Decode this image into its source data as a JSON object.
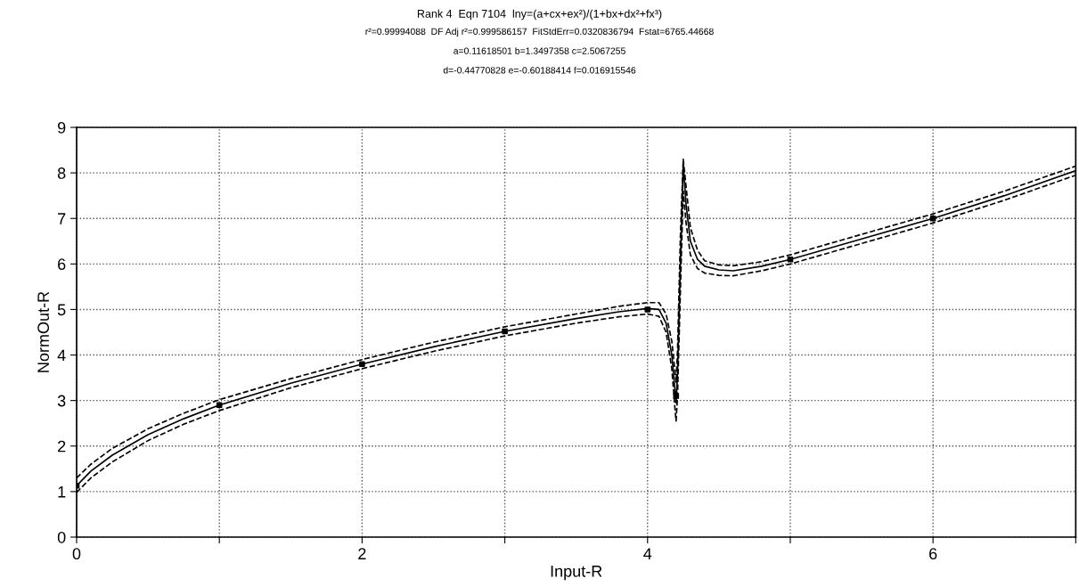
{
  "chart_data": {
    "type": "line",
    "title": "Rank 4  Eqn 7104  lny=(a+cx+ex²)/(1+bx+dx²+fx³)",
    "subtitle": "r²=0.99994088  DF Adj r²=0.999586157  FitStdErr=0.0320836794  Fstat=6765.44668",
    "annotations": [
      "a=0.11618501 b=1.3497358 c=2.5067255",
      "d=-0.44770828 e=-0.60188414 f=0.016915546"
    ],
    "xlabel": "Input-R",
    "ylabel": "NormOut-R",
    "series": [
      {
        "color": "#000000",
        "line_style": "solid",
        "x": [
          0,
          0.1,
          0.25,
          0.5,
          0.75,
          1,
          1.5,
          2,
          2.5,
          3,
          3.5,
          3.8,
          4.0,
          4.08,
          4.13,
          4.17,
          4.19,
          4.2,
          4.21,
          4.23,
          4.25,
          4.27,
          4.3,
          4.35,
          4.4,
          4.5,
          4.6,
          4.8,
          5,
          5.5,
          6,
          6.5,
          7
        ],
        "values": [
          1.13,
          1.45,
          1.8,
          2.25,
          2.6,
          2.9,
          3.38,
          3.8,
          4.18,
          4.52,
          4.8,
          4.95,
          5.02,
          5.0,
          4.7,
          4.0,
          3.3,
          2.95,
          3.6,
          6.0,
          8.2,
          7.3,
          6.5,
          6.1,
          5.95,
          5.87,
          5.85,
          5.95,
          6.1,
          6.55,
          7.0,
          7.5,
          8.05
        ]
      },
      {
        "color": "#000000",
        "line_style": "dashed",
        "x": [
          0,
          0.1,
          0.25,
          0.5,
          0.75,
          1,
          1.5,
          2,
          2.5,
          3,
          3.5,
          3.8,
          4.0,
          4.08,
          4.13,
          4.17,
          4.19,
          4.2,
          4.21,
          4.23,
          4.25,
          4.27,
          4.3,
          4.35,
          4.4,
          4.5,
          4.6,
          4.8,
          5,
          5.5,
          6,
          6.5,
          7
        ],
        "values": [
          1.3,
          1.6,
          1.95,
          2.38,
          2.72,
          3.02,
          3.48,
          3.9,
          4.28,
          4.62,
          4.9,
          5.07,
          5.15,
          5.15,
          4.9,
          4.3,
          3.7,
          3.4,
          4.1,
          6.6,
          8.3,
          7.7,
          6.8,
          6.3,
          6.07,
          5.98,
          5.96,
          6.05,
          6.2,
          6.65,
          7.1,
          7.6,
          8.15
        ]
      },
      {
        "color": "#000000",
        "line_style": "dashed",
        "x": [
          0,
          0.1,
          0.25,
          0.5,
          0.75,
          1,
          1.5,
          2,
          2.5,
          3,
          3.5,
          3.8,
          4.0,
          4.08,
          4.13,
          4.17,
          4.19,
          4.2,
          4.21,
          4.23,
          4.25,
          4.27,
          4.3,
          4.35,
          4.4,
          4.5,
          4.6,
          4.8,
          5,
          5.5,
          6,
          6.5,
          7
        ],
        "values": [
          0.98,
          1.3,
          1.65,
          2.12,
          2.48,
          2.78,
          3.28,
          3.7,
          4.08,
          4.42,
          4.7,
          4.84,
          4.9,
          4.85,
          4.5,
          3.7,
          2.9,
          2.55,
          3.1,
          5.4,
          7.6,
          6.9,
          6.2,
          5.9,
          5.8,
          5.75,
          5.74,
          5.85,
          6.0,
          6.45,
          6.9,
          7.4,
          7.95
        ]
      },
      {
        "type": "scatter",
        "color": "#000000",
        "marker": "square",
        "x": [
          0,
          1,
          2,
          3,
          4,
          4.2,
          5,
          6
        ],
        "values": [
          1.13,
          2.9,
          3.8,
          4.52,
          5.0,
          3.1,
          6.1,
          7.0
        ]
      }
    ],
    "xlim": [
      0,
      7
    ],
    "ylim": [
      0,
      9
    ],
    "xticks": [
      0,
      {
        "value": 1,
        "label": null
      },
      2,
      {
        "value": 3,
        "label": null
      },
      4,
      {
        "value": 5,
        "label": null
      },
      6,
      {
        "value": 7,
        "label": null
      }
    ],
    "yticks": [
      0,
      1,
      2,
      3,
      4,
      5,
      6,
      7,
      8,
      9
    ],
    "grid": true
  }
}
